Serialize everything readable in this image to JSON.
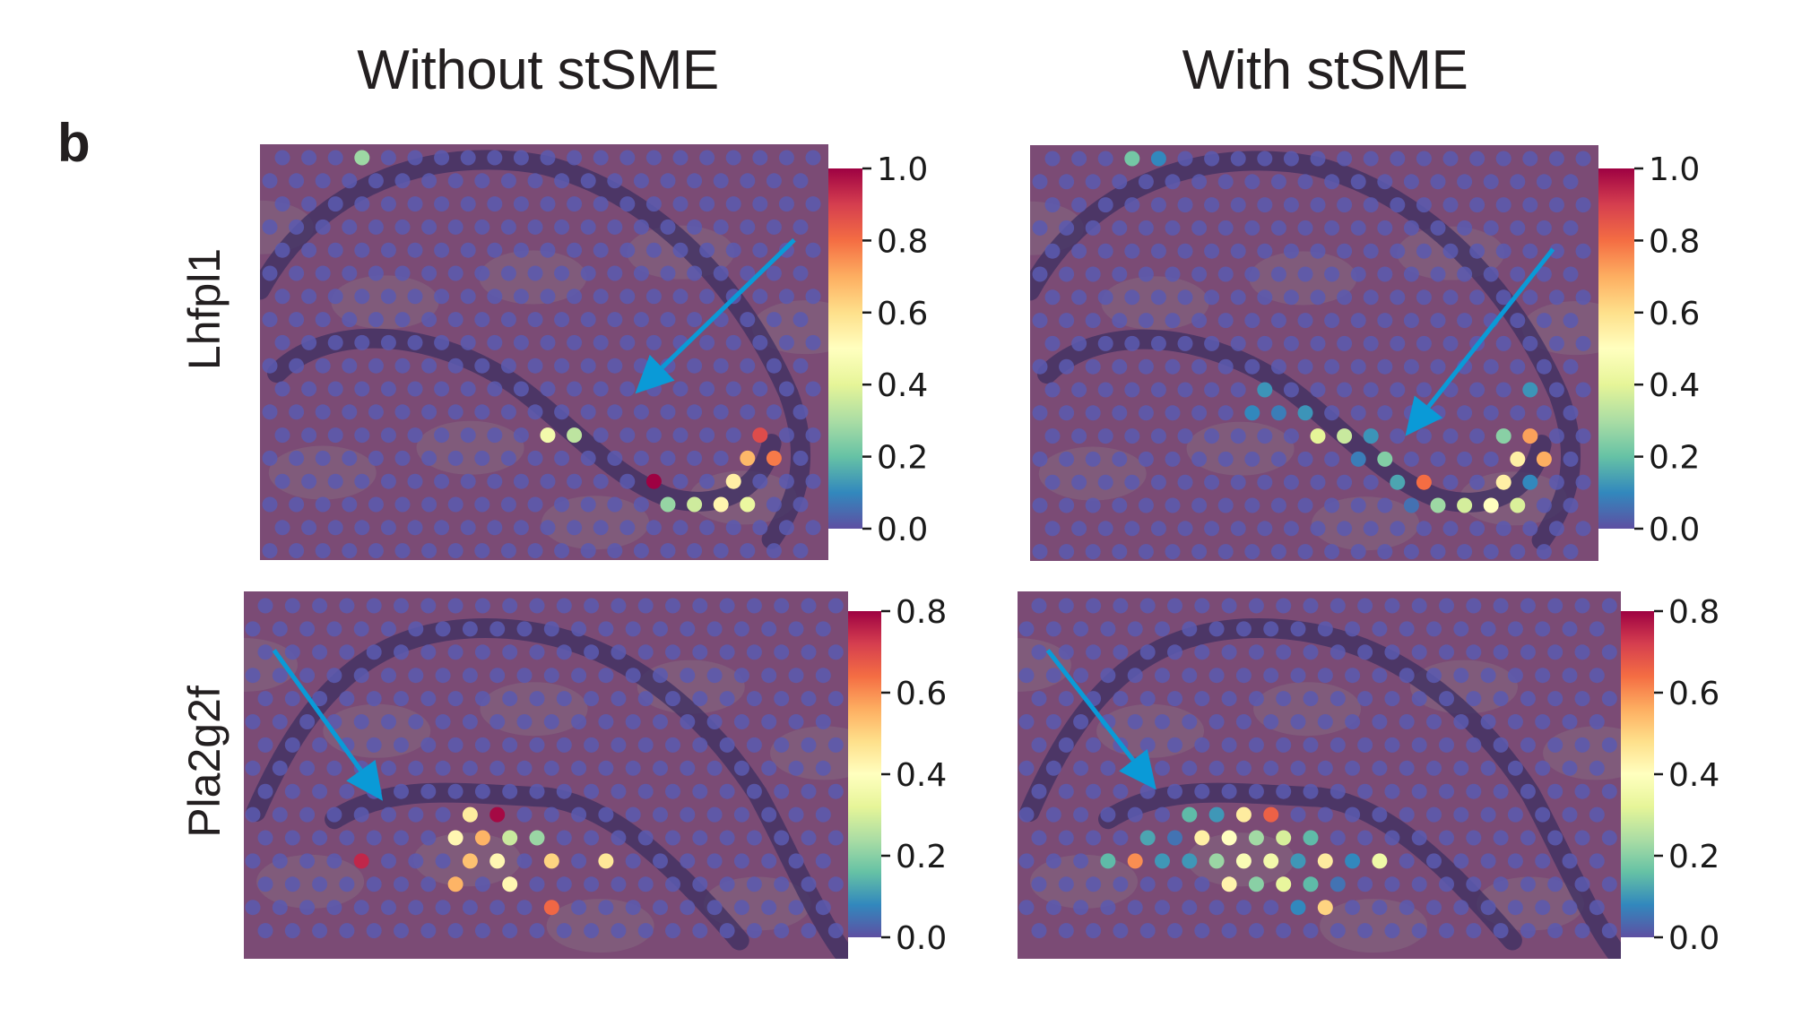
{
  "figure": {
    "panel_letter": "b",
    "column_titles": [
      "Without stSME",
      "With stSME"
    ],
    "row_labels": [
      "Lhfpl1",
      "Pla2g2f"
    ],
    "arrow_color": "#0a9ad7",
    "background_spot_color": "#5b5bb0",
    "tissue_color": "#7b4b75"
  },
  "chart_data": [
    {
      "type": "scatter",
      "subtype": "spatial-spot-overlay",
      "title": "Without stSME",
      "gene": "Lhfpl1",
      "colormap": "Spectral_r",
      "colorbar": {
        "vmin": 0.0,
        "vmax": 1.0,
        "ticks": [
          0.0,
          0.2,
          0.4,
          0.6,
          0.8,
          1.0
        ],
        "tick_labels": [
          "0.0",
          "0.2",
          "0.4",
          "0.6",
          "0.8",
          "1.0"
        ]
      },
      "grid": {
        "rows": 18,
        "cols": 21
      },
      "arrow": {
        "from": [
          0.94,
          0.23
        ],
        "to": [
          0.66,
          0.6
        ]
      },
      "spots": [
        {
          "row": 0,
          "col": 3,
          "value": 0.28
        },
        {
          "row": 12,
          "col": 10,
          "value": 0.45
        },
        {
          "row": 12,
          "col": 11,
          "value": 0.33
        },
        {
          "row": 12,
          "col": 18,
          "value": 0.87
        },
        {
          "row": 13,
          "col": 18,
          "value": 0.68
        },
        {
          "row": 13,
          "col": 19,
          "value": 0.78
        },
        {
          "row": 14,
          "col": 14,
          "value": 1.0
        },
        {
          "row": 14,
          "col": 17,
          "value": 0.55
        },
        {
          "row": 15,
          "col": 15,
          "value": 0.27
        },
        {
          "row": 15,
          "col": 16,
          "value": 0.36
        },
        {
          "row": 15,
          "col": 17,
          "value": 0.53
        },
        {
          "row": 15,
          "col": 18,
          "value": 0.42
        }
      ]
    },
    {
      "type": "scatter",
      "subtype": "spatial-spot-overlay",
      "title": "With stSME",
      "gene": "Lhfpl1",
      "colormap": "Spectral_r",
      "colorbar": {
        "vmin": 0.0,
        "vmax": 1.0,
        "ticks": [
          0.0,
          0.2,
          0.4,
          0.6,
          0.8,
          1.0
        ],
        "tick_labels": [
          "0.0",
          "0.2",
          "0.4",
          "0.6",
          "0.8",
          "1.0"
        ]
      },
      "grid": {
        "rows": 18,
        "cols": 21
      },
      "arrow": {
        "from": [
          0.92,
          0.25
        ],
        "to": [
          0.66,
          0.7
        ]
      },
      "spots": [
        {
          "row": 0,
          "col": 3,
          "value": 0.22
        },
        {
          "row": 0,
          "col": 4,
          "value": 0.1
        },
        {
          "row": 10,
          "col": 8,
          "value": 0.12
        },
        {
          "row": 10,
          "col": 18,
          "value": 0.12
        },
        {
          "row": 11,
          "col": 8,
          "value": 0.1
        },
        {
          "row": 11,
          "col": 9,
          "value": 0.08
        },
        {
          "row": 11,
          "col": 10,
          "value": 0.12
        },
        {
          "row": 12,
          "col": 10,
          "value": 0.4
        },
        {
          "row": 12,
          "col": 11,
          "value": 0.35
        },
        {
          "row": 12,
          "col": 12,
          "value": 0.12
        },
        {
          "row": 12,
          "col": 17,
          "value": 0.25
        },
        {
          "row": 12,
          "col": 18,
          "value": 0.72
        },
        {
          "row": 13,
          "col": 12,
          "value": 0.08
        },
        {
          "row": 13,
          "col": 13,
          "value": 0.24
        },
        {
          "row": 13,
          "col": 18,
          "value": 0.55
        },
        {
          "row": 13,
          "col": 19,
          "value": 0.7
        },
        {
          "row": 14,
          "col": 13,
          "value": 0.15
        },
        {
          "row": 14,
          "col": 14,
          "value": 0.8
        },
        {
          "row": 14,
          "col": 17,
          "value": 0.55
        },
        {
          "row": 14,
          "col": 18,
          "value": 0.1
        },
        {
          "row": 15,
          "col": 14,
          "value": 0.06
        },
        {
          "row": 15,
          "col": 15,
          "value": 0.28
        },
        {
          "row": 15,
          "col": 16,
          "value": 0.37
        },
        {
          "row": 15,
          "col": 17,
          "value": 0.5
        },
        {
          "row": 15,
          "col": 18,
          "value": 0.38
        }
      ]
    },
    {
      "type": "scatter",
      "subtype": "spatial-spot-overlay",
      "title": "Without stSME",
      "gene": "Pla2g2f",
      "colormap": "Spectral_r",
      "colorbar": {
        "vmin": 0.0,
        "vmax": 0.8,
        "ticks": [
          0.0,
          0.2,
          0.4,
          0.6,
          0.8
        ],
        "tick_labels": [
          "0.0",
          "0.2",
          "0.4",
          "0.6",
          "0.8"
        ]
      },
      "grid": {
        "rows": 15,
        "cols": 22
      },
      "arrow": {
        "from": [
          0.05,
          0.16
        ],
        "to": [
          0.23,
          0.57
        ]
      },
      "spots": [
        {
          "row": 9,
          "col": 8,
          "value": 0.45
        },
        {
          "row": 9,
          "col": 9,
          "value": 0.79
        },
        {
          "row": 10,
          "col": 7,
          "value": 0.42
        },
        {
          "row": 10,
          "col": 8,
          "value": 0.55
        },
        {
          "row": 10,
          "col": 9,
          "value": 0.28
        },
        {
          "row": 10,
          "col": 10,
          "value": 0.22
        },
        {
          "row": 11,
          "col": 4,
          "value": 0.75
        },
        {
          "row": 11,
          "col": 8,
          "value": 0.53
        },
        {
          "row": 11,
          "col": 9,
          "value": 0.42
        },
        {
          "row": 11,
          "col": 11,
          "value": 0.5
        },
        {
          "row": 11,
          "col": 13,
          "value": 0.46
        },
        {
          "row": 12,
          "col": 7,
          "value": 0.55
        },
        {
          "row": 12,
          "col": 9,
          "value": 0.42
        },
        {
          "row": 13,
          "col": 11,
          "value": 0.65
        }
      ]
    },
    {
      "type": "scatter",
      "subtype": "spatial-spot-overlay",
      "title": "With stSME",
      "gene": "Pla2g2f",
      "colormap": "Spectral_r",
      "colorbar": {
        "vmin": 0.0,
        "vmax": 0.8,
        "ticks": [
          0.0,
          0.2,
          0.4,
          0.6,
          0.8
        ],
        "tick_labels": [
          "0.0",
          "0.2",
          "0.4",
          "0.6",
          "0.8"
        ]
      },
      "grid": {
        "rows": 15,
        "cols": 22
      },
      "arrow": {
        "from": [
          0.05,
          0.16
        ],
        "to": [
          0.23,
          0.54
        ]
      },
      "spots": [
        {
          "row": 9,
          "col": 6,
          "value": 0.15
        },
        {
          "row": 9,
          "col": 7,
          "value": 0.1
        },
        {
          "row": 9,
          "col": 8,
          "value": 0.45
        },
        {
          "row": 9,
          "col": 9,
          "value": 0.66
        },
        {
          "row": 10,
          "col": 4,
          "value": 0.12
        },
        {
          "row": 10,
          "col": 5,
          "value": 0.05
        },
        {
          "row": 10,
          "col": 6,
          "value": 0.44
        },
        {
          "row": 10,
          "col": 7,
          "value": 0.4
        },
        {
          "row": 10,
          "col": 8,
          "value": 0.23
        },
        {
          "row": 10,
          "col": 9,
          "value": 0.3
        },
        {
          "row": 10,
          "col": 10,
          "value": 0.15
        },
        {
          "row": 11,
          "col": 3,
          "value": 0.15
        },
        {
          "row": 11,
          "col": 4,
          "value": 0.6
        },
        {
          "row": 11,
          "col": 5,
          "value": 0.1
        },
        {
          "row": 11,
          "col": 6,
          "value": 0.1
        },
        {
          "row": 11,
          "col": 7,
          "value": 0.22
        },
        {
          "row": 11,
          "col": 8,
          "value": 0.38
        },
        {
          "row": 11,
          "col": 9,
          "value": 0.36
        },
        {
          "row": 11,
          "col": 10,
          "value": 0.1
        },
        {
          "row": 11,
          "col": 11,
          "value": 0.45
        },
        {
          "row": 11,
          "col": 12,
          "value": 0.08
        },
        {
          "row": 11,
          "col": 13,
          "value": 0.35
        },
        {
          "row": 12,
          "col": 7,
          "value": 0.43
        },
        {
          "row": 12,
          "col": 8,
          "value": 0.2
        },
        {
          "row": 12,
          "col": 9,
          "value": 0.33
        },
        {
          "row": 12,
          "col": 10,
          "value": 0.15
        },
        {
          "row": 12,
          "col": 11,
          "value": 0.05
        },
        {
          "row": 13,
          "col": 10,
          "value": 0.08
        },
        {
          "row": 13,
          "col": 11,
          "value": 0.5
        }
      ]
    }
  ]
}
